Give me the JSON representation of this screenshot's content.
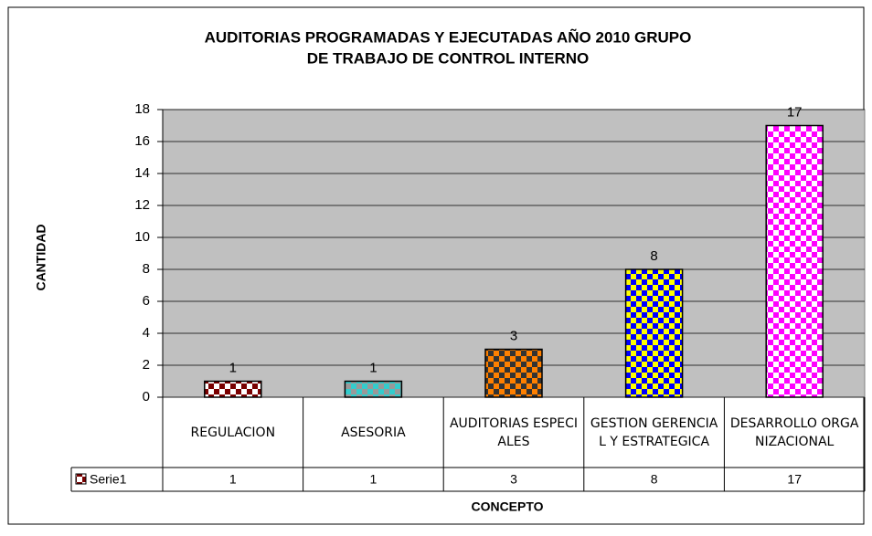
{
  "chart_data": {
    "type": "bar",
    "title": [
      "AUDITORIAS PROGRAMADAS Y EJECUTADAS AÑO 2010 GRUPO",
      "DE TRABAJO DE CONTROL INTERNO"
    ],
    "y_label": "CANTIDAD",
    "x_label": "CONCEPTO",
    "categories": [
      "REGULACION",
      "ASESORIA",
      "AUDITORIAS ESPECIALES",
      "GESTION GERENCIAL Y ESTRATEGICA",
      "DESARROLLO ORGANIZACIONAL"
    ],
    "series": [
      {
        "name": "Serie1",
        "values": [
          1,
          1,
          3,
          8,
          17
        ],
        "colors": [
          [
            "#7a0000",
            "#ffffff"
          ],
          [
            "#33cccc",
            "#999999"
          ],
          [
            "#ff8000",
            "#333333"
          ],
          [
            "#0000ff",
            "#ffff00"
          ],
          [
            "#ff00ff",
            "#ffffff"
          ]
        ]
      }
    ],
    "ylim": [
      0,
      18
    ],
    "yticks": [
      0,
      2,
      4,
      6,
      8,
      10,
      12,
      14,
      16,
      18
    ],
    "grid": true,
    "data_table": true
  }
}
